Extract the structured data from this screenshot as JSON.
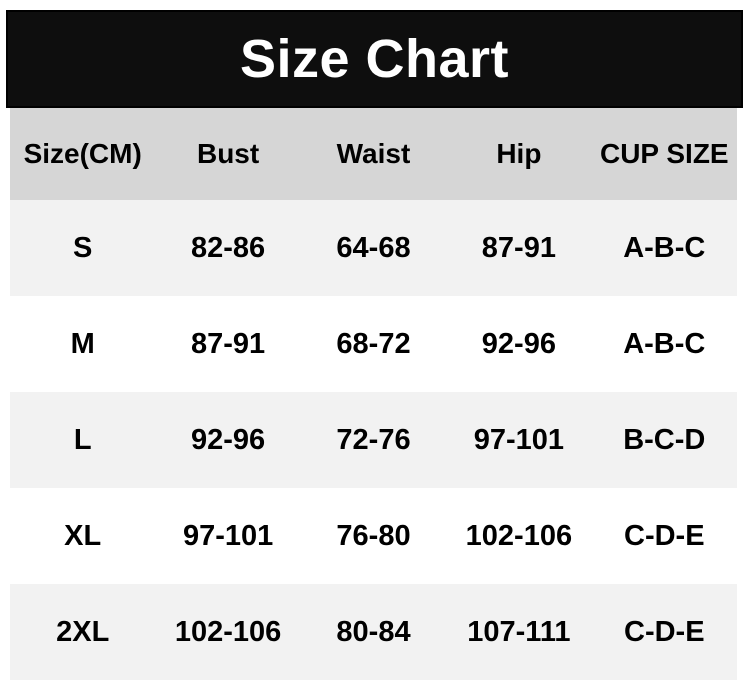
{
  "title": "Size Chart",
  "colors": {
    "banner_background": "#0e0e0e",
    "banner_text": "#ffffff",
    "header_row_background": "#d6d6d6",
    "alt_row_background": "#f2f2f2",
    "row_background": "#ffffff",
    "table_text": "#000000"
  },
  "table": {
    "headers": [
      "Size(CM)",
      "Bust",
      "Waist",
      "Hip",
      "CUP SIZE"
    ],
    "rows": [
      {
        "size": "S",
        "bust": "82-86",
        "waist": "64-68",
        "hip": "87-91",
        "cup_size": "A-B-C"
      },
      {
        "size": "M",
        "bust": "87-91",
        "waist": "68-72",
        "hip": "92-96",
        "cup_size": "A-B-C"
      },
      {
        "size": "L",
        "bust": "92-96",
        "waist": "72-76",
        "hip": "97-101",
        "cup_size": "B-C-D"
      },
      {
        "size": "XL",
        "bust": "97-101",
        "waist": "76-80",
        "hip": "102-106",
        "cup_size": "C-D-E"
      },
      {
        "size": "2XL",
        "bust": "102-106",
        "waist": "80-84",
        "hip": "107-111",
        "cup_size": "C-D-E"
      }
    ]
  },
  "chart_data": {
    "type": "table",
    "title": "Size Chart",
    "unit": "CM",
    "columns": [
      "Size(CM)",
      "Bust",
      "Waist",
      "Hip",
      "CUP SIZE"
    ],
    "rows": [
      [
        "S",
        "82-86",
        "64-68",
        "87-91",
        "A-B-C"
      ],
      [
        "M",
        "87-91",
        "68-72",
        "92-96",
        "A-B-C"
      ],
      [
        "L",
        "92-96",
        "72-76",
        "97-101",
        "B-C-D"
      ],
      [
        "XL",
        "97-101",
        "76-80",
        "102-106",
        "C-D-E"
      ],
      [
        "2XL",
        "102-106",
        "80-84",
        "107-111",
        "C-D-E"
      ]
    ]
  }
}
